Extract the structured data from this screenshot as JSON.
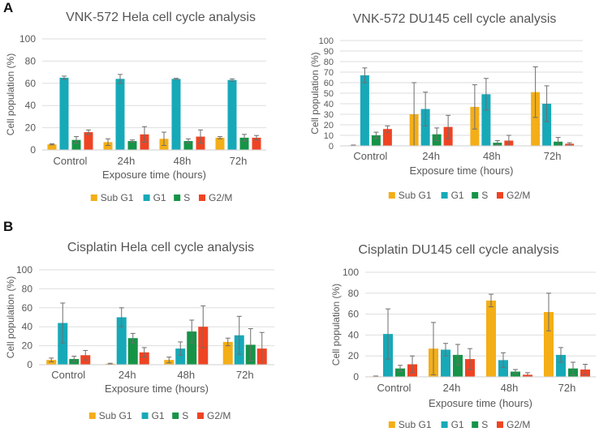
{
  "panel_labels": [
    "A",
    "B"
  ],
  "colors": {
    "Sub G1": "#f4ae17",
    "G1": "#17a9b8",
    "S": "#159447",
    "G2/M": "#ef4423"
  },
  "chart_data": [
    {
      "type": "bar",
      "title": "VNK-572 Hela cell cycle analysis",
      "xlabel": "Exposure time (hours)",
      "ylabel": "Cell population (%)",
      "ylim": [
        0,
        100
      ],
      "yticks": [
        0,
        20,
        40,
        60,
        80,
        100
      ],
      "categories": [
        "Control",
        "24h",
        "48h",
        "72h"
      ],
      "series": [
        {
          "name": "Sub G1",
          "values": [
            5,
            7,
            10,
            11
          ],
          "errors": [
            0.5,
            3,
            6,
            1
          ]
        },
        {
          "name": "G1",
          "values": [
            65,
            64,
            64,
            63
          ],
          "errors": [
            1.5,
            4,
            0.5,
            1
          ]
        },
        {
          "name": "S",
          "values": [
            9,
            8,
            8,
            11
          ],
          "errors": [
            3,
            1,
            2,
            3
          ]
        },
        {
          "name": "G2/M",
          "values": [
            16,
            14,
            12,
            11
          ],
          "errors": [
            2,
            7,
            6,
            2
          ]
        }
      ]
    },
    {
      "type": "bar",
      "title": "VNK-572 DU145 cell cycle analysis",
      "xlabel": "Exposure time (hours)",
      "ylabel": "Cell population (%)",
      "ylim": [
        0,
        100
      ],
      "yticks": [
        0,
        10,
        20,
        30,
        40,
        50,
        60,
        70,
        80,
        90,
        100
      ],
      "categories": [
        "Control",
        "24h",
        "48h",
        "72h"
      ],
      "series": [
        {
          "name": "Sub G1",
          "values": [
            0.5,
            30,
            37,
            51
          ],
          "errors": [
            0.3,
            30,
            21,
            24
          ]
        },
        {
          "name": "G1",
          "values": [
            67,
            35,
            49,
            40
          ],
          "errors": [
            7,
            16,
            15,
            17
          ]
        },
        {
          "name": "S",
          "values": [
            10,
            11,
            3,
            4
          ],
          "errors": [
            3,
            6,
            2,
            4
          ]
        },
        {
          "name": "G2/M",
          "values": [
            16,
            18,
            5,
            2
          ],
          "errors": [
            3,
            11,
            5,
            1
          ]
        }
      ]
    },
    {
      "type": "bar",
      "title": "Cisplatin Hela cell cycle analysis",
      "xlabel": "Exposure time (hours)",
      "ylabel": "Cell population (%)",
      "ylim": [
        0,
        100
      ],
      "yticks": [
        0,
        20,
        40,
        60,
        80,
        100
      ],
      "categories": [
        "Control",
        "24h",
        "48h",
        "72h"
      ],
      "series": [
        {
          "name": "Sub G1",
          "values": [
            5,
            1,
            5,
            24
          ],
          "errors": [
            2,
            0.5,
            3,
            4
          ]
        },
        {
          "name": "G1",
          "values": [
            44,
            50,
            17,
            31
          ],
          "errors": [
            21,
            10,
            7,
            20
          ]
        },
        {
          "name": "S",
          "values": [
            6,
            28,
            35,
            21
          ],
          "errors": [
            3,
            5,
            12,
            17
          ]
        },
        {
          "name": "G2/M",
          "values": [
            10,
            13,
            40,
            17
          ],
          "errors": [
            5,
            5,
            22,
            17
          ]
        }
      ]
    },
    {
      "type": "bar",
      "title": "Cisplatin DU145 cell cycle analysis",
      "xlabel": "Exposure time (hours)",
      "ylabel": "Cell population (%)",
      "ylim": [
        0,
        100
      ],
      "yticks": [
        0,
        20,
        40,
        60,
        80,
        100
      ],
      "categories": [
        "Control",
        "24h",
        "48h",
        "72h"
      ],
      "series": [
        {
          "name": "Sub G1",
          "values": [
            0.5,
            27,
            73,
            62
          ],
          "errors": [
            0.3,
            25,
            6,
            18
          ]
        },
        {
          "name": "G1",
          "values": [
            41,
            26,
            16,
            21
          ],
          "errors": [
            24,
            6,
            7,
            7
          ]
        },
        {
          "name": "S",
          "values": [
            8,
            21,
            5,
            8
          ],
          "errors": [
            3,
            10,
            2,
            6
          ]
        },
        {
          "name": "G2/M",
          "values": [
            12,
            17,
            2,
            7
          ],
          "errors": [
            8,
            10,
            2,
            5
          ]
        }
      ]
    }
  ]
}
